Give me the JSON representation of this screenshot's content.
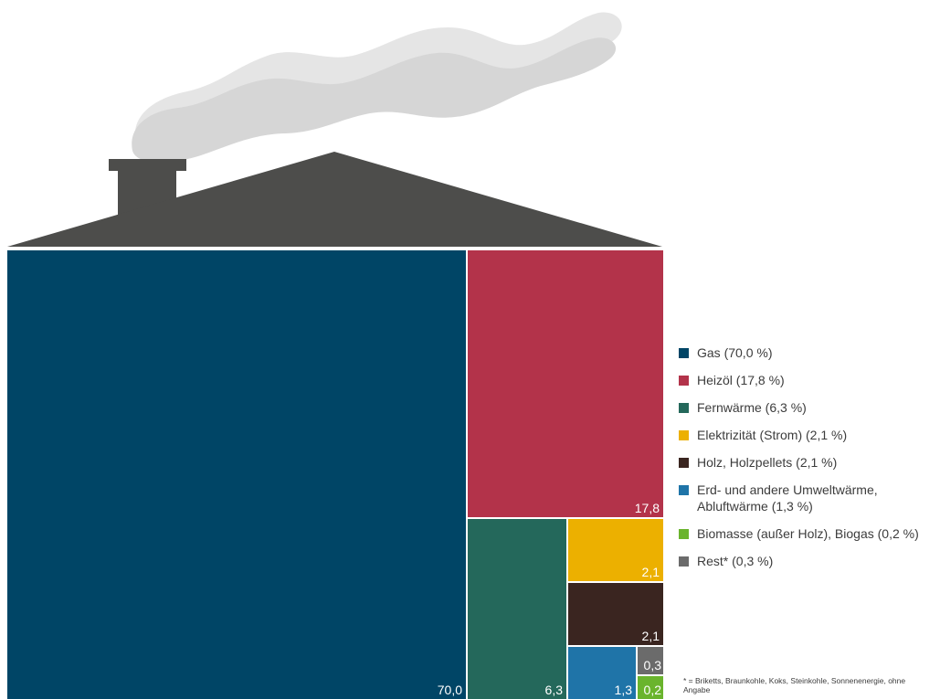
{
  "chart_data": {
    "type": "treemap",
    "unit": "%",
    "segments": [
      {
        "name": "Gas",
        "value": 70.0,
        "value_label": "70,0",
        "legend_label": "Gas (70,0 %)",
        "color": "#004566"
      },
      {
        "name": "Heizöl",
        "value": 17.8,
        "value_label": "17,8",
        "legend_label": "Heizöl (17,8 %)",
        "color": "#b3334a"
      },
      {
        "name": "Fernwärme",
        "value": 6.3,
        "value_label": "6,3",
        "legend_label": "Fernwärme (6,3 %)",
        "color": "#24685b"
      },
      {
        "name": "Elektrizität (Strom)",
        "value": 2.1,
        "value_label": "2,1",
        "legend_label": "Elektrizität (Strom) (2,1 %)",
        "color": "#ecb000"
      },
      {
        "name": "Holz, Holzpellets",
        "value": 2.1,
        "value_label": "2,1",
        "legend_label": "Holz, Holzpellets (2,1 %)",
        "color": "#3a2520"
      },
      {
        "name": "Erd- und andere Umweltwärme, Abluftwärme",
        "value": 1.3,
        "value_label": "1,3",
        "legend_label": "Erd- und andere Umweltwärme, Abluftwärme (1,3 %)",
        "color": "#1f74a8"
      },
      {
        "name": "Biomasse (außer Holz), Biogas",
        "value": 0.2,
        "value_label": "0,2",
        "legend_label": "Biomasse (außer Holz), Biogas (0,2 %)",
        "color": "#6ab42d"
      },
      {
        "name": "Rest*",
        "value": 0.3,
        "value_label": "0,3",
        "legend_label": "Rest* (0,3 %)",
        "color": "#6b6b6b"
      }
    ],
    "legend_placement": "right",
    "footnote": "* = Briketts, Braunkohle, Koks, Steinkohle, Sonnenenergie, ohne Angabe"
  },
  "illustration": {
    "roof_color": "#4d4d4b",
    "smoke_color": "#dcdcdc"
  }
}
